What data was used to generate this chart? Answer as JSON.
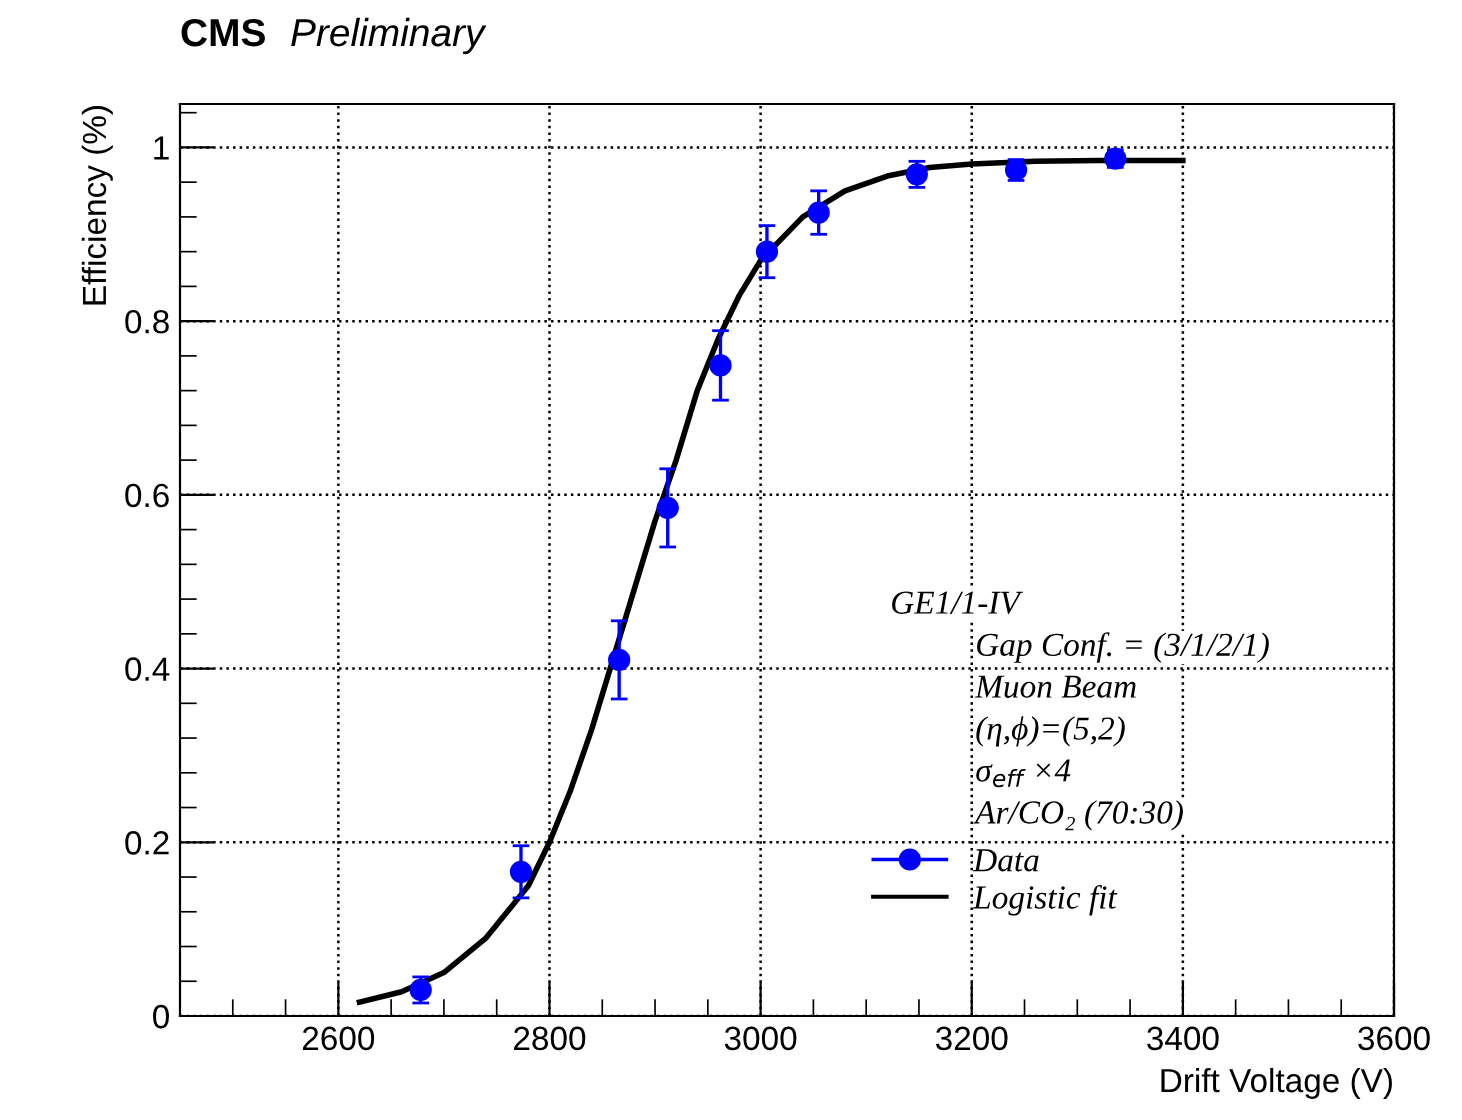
{
  "chart_data": {
    "type": "scatter",
    "title": "CMS",
    "subtitle": "Preliminary",
    "xlabel": "Drift Voltage (V)",
    "ylabel": "Efficiency (%)",
    "xlim": [
      2450,
      3600
    ],
    "xticks": [
      2600,
      2800,
      3000,
      3200,
      3400,
      3600
    ],
    "ylim": [
      0,
      1.05
    ],
    "yticks": [
      0,
      0.2,
      0.4,
      0.6,
      0.8,
      1
    ],
    "grid": true,
    "legend": "right",
    "annotations": [
      "GE1/1-IV",
      "Gap Conf. = (3/1/2/1)",
      "Muon Beam",
      "(η,ϕ)=(5,2)",
      "σ$_{eff}$ ×4",
      "Ar/CO₂ (70:30)"
    ],
    "series": [
      {
        "name": "Data",
        "color": "#0000ff",
        "marker": "circle",
        "x": [
          2678,
          2773,
          2866,
          2912,
          2962,
          3006,
          3055,
          3148,
          3242,
          3336
        ],
        "values": [
          0.03,
          0.166,
          0.41,
          0.585,
          0.749,
          0.88,
          0.925,
          0.969,
          0.974,
          0.987
        ],
        "errors": [
          0.015,
          0.03,
          0.045,
          0.045,
          0.04,
          0.03,
          0.025,
          0.015,
          0.012,
          0.01
        ]
      },
      {
        "name": "Logistic fit",
        "type": "line",
        "color": "#000000",
        "line_style": "solid",
        "x": [
          2620,
          2660,
          2700,
          2740,
          2780,
          2800,
          2820,
          2840,
          2860,
          2880,
          2900,
          2920,
          2940,
          2960,
          2980,
          3000,
          3040,
          3080,
          3120,
          3160,
          3200,
          3260,
          3320,
          3400
        ],
        "values": [
          0.016,
          0.028,
          0.05,
          0.09,
          0.15,
          0.2,
          0.26,
          0.33,
          0.41,
          0.49,
          0.57,
          0.64,
          0.72,
          0.78,
          0.83,
          0.87,
          0.92,
          0.95,
          0.967,
          0.977,
          0.981,
          0.984,
          0.985,
          0.985
        ]
      }
    ]
  }
}
